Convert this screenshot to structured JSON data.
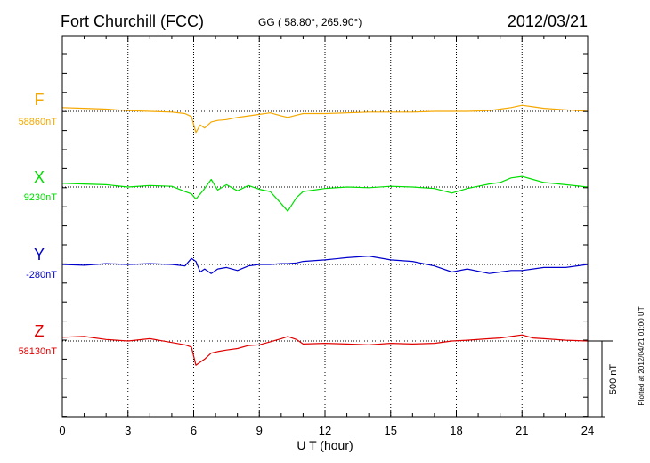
{
  "header": {
    "station": "Fort Churchill (FCC)",
    "coords": "GG ( 58.80°, 265.90°)",
    "date": "2012/03/21"
  },
  "footer": {
    "plotted": "Plotted at 2012/04/21 01:00 UT"
  },
  "colors": {
    "F": "#f5a800",
    "X": "#00dd00",
    "Y": "#0000cc",
    "Z": "#e00000",
    "axis": "#000000",
    "grid": "#000000"
  },
  "chart_data": {
    "type": "line",
    "xlabel": "U T (hour)",
    "xlim": [
      0,
      24
    ],
    "xticks": [
      "0",
      "3",
      "6",
      "9",
      "12",
      "15",
      "18",
      "21",
      "24"
    ],
    "grid": true,
    "scale_bar": {
      "label": "500 nT",
      "value": 500
    },
    "x": [
      0,
      1,
      2,
      3,
      4,
      5,
      5.6,
      5.9,
      6.1,
      6.3,
      6.5,
      6.8,
      7.1,
      7.5,
      8,
      8.5,
      9,
      9.5,
      10,
      10.3,
      10.7,
      11,
      12,
      13,
      14,
      15,
      16,
      17,
      17.8,
      18.5,
      19.5,
      20,
      20.5,
      21,
      21.5,
      22,
      23,
      24
    ],
    "series": [
      {
        "name": "F",
        "baseline": "58860nT",
        "values": [
          25,
          20,
          15,
          5,
          0,
          -5,
          -15,
          -35,
          -140,
          -90,
          -110,
          -70,
          -60,
          -55,
          -40,
          -30,
          -20,
          -10,
          -30,
          -40,
          -25,
          -15,
          -15,
          -10,
          -5,
          -5,
          -5,
          0,
          0,
          0,
          5,
          15,
          25,
          40,
          30,
          20,
          10,
          0
        ]
      },
      {
        "name": "X",
        "baseline": "9230nT",
        "values": [
          25,
          20,
          15,
          0,
          10,
          5,
          -30,
          -45,
          -80,
          -45,
          -10,
          50,
          -20,
          15,
          -25,
          10,
          -15,
          -30,
          -110,
          -160,
          -70,
          -30,
          -10,
          0,
          -5,
          5,
          0,
          -10,
          -40,
          -10,
          20,
          30,
          60,
          70,
          50,
          30,
          15,
          0
        ]
      },
      {
        "name": "Y",
        "baseline": "-280nT",
        "values": [
          0,
          -5,
          5,
          0,
          5,
          0,
          -10,
          40,
          20,
          -50,
          -30,
          -60,
          -30,
          -20,
          -40,
          -10,
          0,
          0,
          5,
          5,
          10,
          20,
          30,
          45,
          55,
          30,
          20,
          -10,
          -50,
          -30,
          -60,
          -50,
          -40,
          -40,
          -30,
          -20,
          -20,
          0
        ]
      },
      {
        "name": "Z",
        "baseline": "58130nT",
        "values": [
          25,
          30,
          10,
          0,
          15,
          -10,
          -25,
          -40,
          -160,
          -140,
          -120,
          -80,
          -70,
          -60,
          -50,
          -30,
          -25,
          -5,
          15,
          30,
          10,
          -20,
          -15,
          -20,
          -25,
          -15,
          -20,
          -15,
          0,
          5,
          15,
          20,
          30,
          40,
          20,
          15,
          5,
          0
        ]
      }
    ]
  }
}
